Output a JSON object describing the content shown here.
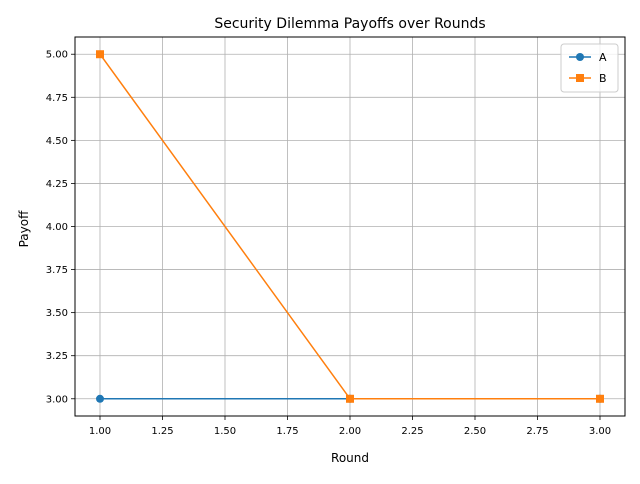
{
  "chart_data": {
    "type": "line",
    "title": "Security Dilemma Payoffs over Rounds",
    "xlabel": "Round",
    "ylabel": "Payoff",
    "xlim": [
      0.9,
      3.1
    ],
    "ylim": [
      2.9,
      5.1
    ],
    "x_ticks": [
      1.0,
      1.25,
      1.5,
      1.75,
      2.0,
      2.25,
      2.5,
      2.75,
      3.0
    ],
    "x_tick_labels": [
      "1.00",
      "1.25",
      "1.50",
      "1.75",
      "2.00",
      "2.25",
      "2.50",
      "2.75",
      "3.00"
    ],
    "y_ticks": [
      3.0,
      3.25,
      3.5,
      3.75,
      4.0,
      4.25,
      4.5,
      4.75,
      5.0
    ],
    "y_tick_labels": [
      "3.00",
      "3.25",
      "3.50",
      "3.75",
      "4.00",
      "4.25",
      "4.50",
      "4.75",
      "5.00"
    ],
    "grid": true,
    "legend_position": "top-right",
    "series": [
      {
        "name": "A",
        "x": [
          1,
          2,
          3
        ],
        "y": [
          3,
          3,
          3
        ],
        "color": "#1f77b4",
        "marker": "circle"
      },
      {
        "name": "B",
        "x": [
          1,
          2,
          3
        ],
        "y": [
          5,
          3,
          3
        ],
        "color": "#ff7f0e",
        "marker": "square"
      }
    ]
  }
}
